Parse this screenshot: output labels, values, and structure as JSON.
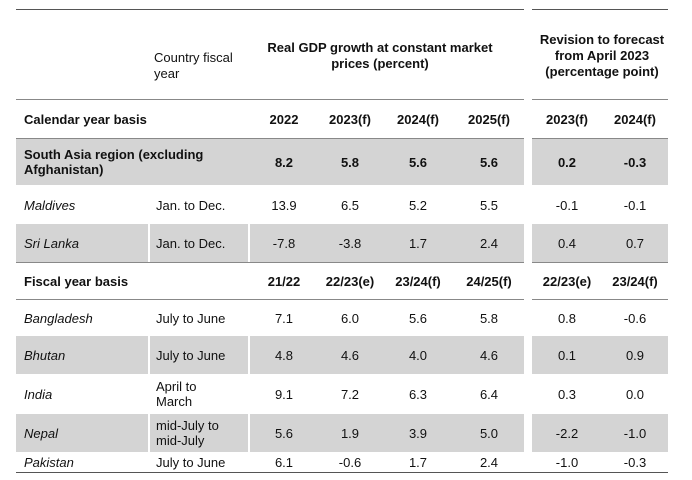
{
  "header": {
    "country_fiscal_year": "Country fiscal year",
    "gdp_group": "Real GDP growth at constant market prices (percent)",
    "revision_group": "Revision to forecast from April 2023 (percentage point)"
  },
  "calendar_header": {
    "label": "Calendar year basis",
    "cols": [
      "2022",
      "2023(f)",
      "2024(f)",
      "2025(f)",
      "2023(f)",
      "2024(f)"
    ]
  },
  "region_row": {
    "label": "South Asia region (excluding Afghanistan)",
    "values": [
      "8.2",
      "5.8",
      "5.6",
      "5.6",
      "0.2",
      "-0.3"
    ]
  },
  "calendar_rows": [
    {
      "country": "Maldives",
      "fiscal_year": "Jan. to Dec.",
      "values": [
        "13.9",
        "6.5",
        "5.2",
        "5.5",
        "-0.1",
        "-0.1"
      ]
    },
    {
      "country": "Sri Lanka",
      "fiscal_year": "Jan. to Dec.",
      "values": [
        "-7.8",
        "-3.8",
        "1.7",
        "2.4",
        "0.4",
        "0.7"
      ]
    }
  ],
  "fiscal_header": {
    "label": "Fiscal year basis",
    "cols": [
      "21/22",
      "22/23(e)",
      "23/24(f)",
      "24/25(f)",
      "22/23(e)",
      "23/24(f)"
    ]
  },
  "fiscal_rows": [
    {
      "country": "Bangladesh",
      "fiscal_year": "July to June",
      "values": [
        "7.1",
        "6.0",
        "5.6",
        "5.8",
        "0.8",
        "-0.6"
      ]
    },
    {
      "country": "Bhutan",
      "fiscal_year": "July to June",
      "values": [
        "4.8",
        "4.6",
        "4.0",
        "4.6",
        "0.1",
        "0.9"
      ]
    },
    {
      "country": "India",
      "fiscal_year": "April to March",
      "values": [
        "9.1",
        "7.2",
        "6.3",
        "6.4",
        "0.3",
        "0.0"
      ]
    },
    {
      "country": "Nepal",
      "fiscal_year": "mid-July to mid-July",
      "values": [
        "5.6",
        "1.9",
        "3.9",
        "5.0",
        "-2.2",
        "-1.0"
      ]
    },
    {
      "country": "Pakistan",
      "fiscal_year": "July to June",
      "values": [
        "6.1",
        "-0.6",
        "1.7",
        "2.4",
        "-1.0",
        "-0.3"
      ]
    }
  ]
}
